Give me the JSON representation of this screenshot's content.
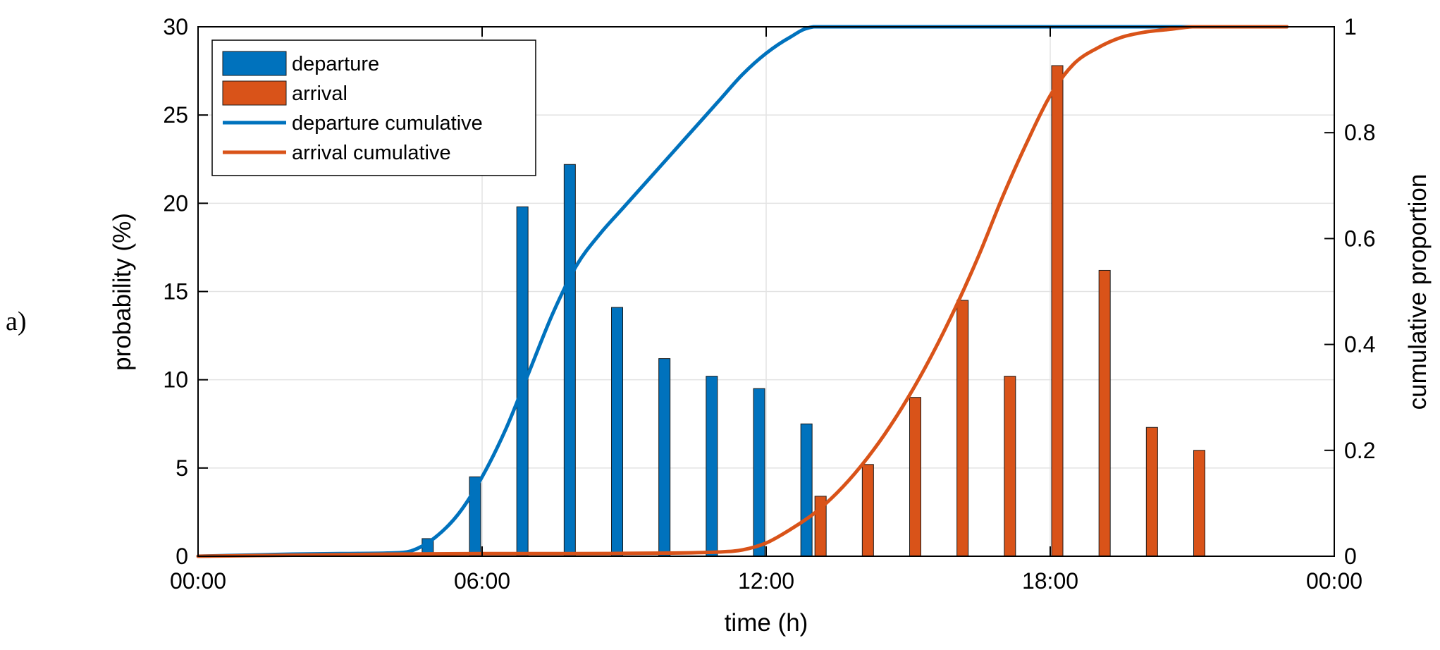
{
  "panel_label": "a)",
  "colors": {
    "departure": "#0072BD",
    "arrival": "#D95319",
    "grid": "#e3e3e3",
    "axis": "#000000"
  },
  "chart_data": {
    "type": "bar",
    "title": "",
    "xlabel": "time (h)",
    "ylabel": "probability (%)",
    "y2label": "cumulative proportion",
    "xlim": [
      0,
      24
    ],
    "ylim": [
      0,
      30
    ],
    "y2lim": [
      0,
      1
    ],
    "grid": true,
    "legend_position": "top-left",
    "x_ticks": [
      {
        "value": 0,
        "label": "00:00"
      },
      {
        "value": 6,
        "label": "06:00"
      },
      {
        "value": 12,
        "label": "12:00"
      },
      {
        "value": 18,
        "label": "18:00"
      },
      {
        "value": 24,
        "label": "00:00"
      }
    ],
    "y_ticks": [
      0,
      5,
      10,
      15,
      20,
      25,
      30
    ],
    "y2_ticks": [
      {
        "value": 0,
        "label": "0"
      },
      {
        "value": 0.2,
        "label": "0.2"
      },
      {
        "value": 0.4,
        "label": "0.4"
      },
      {
        "value": 0.6,
        "label": "0.6"
      },
      {
        "value": 0.8,
        "label": "0.8"
      },
      {
        "value": 1,
        "label": "1"
      }
    ],
    "bar_series": [
      {
        "name": "departure",
        "x": [
          1,
          5,
          6,
          7,
          8,
          9,
          10,
          11,
          12,
          13
        ],
        "values": [
          0.1,
          1.0,
          4.5,
          19.8,
          22.2,
          14.1,
          11.2,
          10.2,
          9.5,
          7.5
        ]
      },
      {
        "name": "arrival",
        "x": [
          13,
          14,
          15,
          16,
          17,
          18,
          19,
          20,
          21
        ],
        "values": [
          3.4,
          5.2,
          9.0,
          14.5,
          10.2,
          27.8,
          16.2,
          7.3,
          6.0
        ]
      }
    ],
    "line_series": [
      {
        "name": "departure cumulative",
        "axis": "right",
        "x": [
          0,
          1,
          2,
          3,
          4,
          4.5,
          5,
          5.5,
          6,
          6.5,
          7,
          7.5,
          8,
          8.5,
          9,
          9.5,
          10,
          10.5,
          11,
          11.5,
          12,
          12.5,
          13,
          14,
          16,
          18,
          20,
          22,
          23
        ],
        "values": [
          0.0,
          0.002,
          0.004,
          0.005,
          0.006,
          0.01,
          0.035,
          0.08,
          0.15,
          0.24,
          0.35,
          0.46,
          0.55,
          0.61,
          0.66,
          0.71,
          0.76,
          0.81,
          0.86,
          0.91,
          0.95,
          0.98,
          1.0,
          1.0,
          1.0,
          1.0,
          1.0,
          1.0,
          1.0
        ]
      },
      {
        "name": "arrival cumulative",
        "axis": "right",
        "x": [
          0,
          2,
          4,
          6,
          8,
          10,
          11,
          11.5,
          12,
          12.5,
          13,
          13.5,
          14,
          14.5,
          15,
          15.5,
          16,
          16.5,
          17,
          17.5,
          18,
          18.5,
          19,
          19.5,
          20,
          20.5,
          21,
          21.5,
          22,
          23
        ],
        "values": [
          0.0,
          0.002,
          0.004,
          0.005,
          0.005,
          0.006,
          0.008,
          0.012,
          0.025,
          0.05,
          0.08,
          0.12,
          0.17,
          0.23,
          0.3,
          0.38,
          0.47,
          0.57,
          0.68,
          0.78,
          0.87,
          0.93,
          0.96,
          0.98,
          0.99,
          0.995,
          1.0,
          1.0,
          1.0,
          1.0
        ]
      }
    ],
    "legend": [
      {
        "label": "departure",
        "kind": "bar",
        "series": "departure"
      },
      {
        "label": "arrival",
        "kind": "bar",
        "series": "arrival"
      },
      {
        "label": "departure cumulative",
        "kind": "line",
        "series": "departure"
      },
      {
        "label": "arrival cumulative",
        "kind": "line",
        "series": "arrival"
      }
    ]
  }
}
